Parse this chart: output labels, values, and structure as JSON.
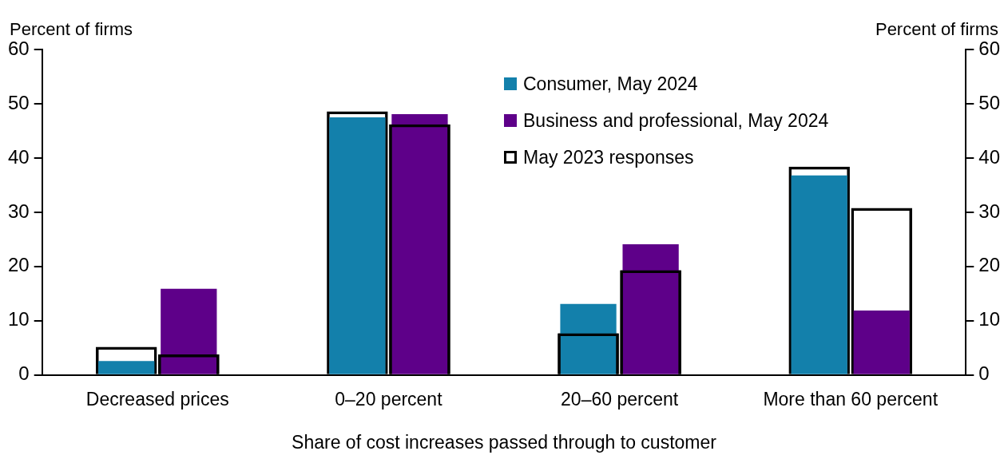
{
  "chart_data": {
    "type": "bar",
    "xlabel": "Share of cost increases passed through to customer",
    "ylabel": "Percent of firms",
    "y2label": "Percent of firms",
    "categories": [
      "Decreased prices",
      "0–20 percent",
      "20–60 percent",
      "More than 60 percent"
    ],
    "series": [
      {
        "name": "Consumer, May 2024",
        "color": "#1380ab",
        "values": [
          2.6,
          47.5,
          13.1,
          36.8
        ]
      },
      {
        "name": "Business and professional, May 2024",
        "color": "#5e0089",
        "values": [
          15.9,
          48.1,
          24.1,
          11.9
        ]
      },
      {
        "name": "May 2023 responses",
        "color": "#000000",
        "values": [
          5.2,
          48.6,
          7.7,
          38.4
        ]
      },
      {
        "color": "#000000",
        "values": [
          3.8,
          46.2,
          19.3,
          30.8
        ]
      }
    ],
    "ylim": [
      0,
      60
    ],
    "yticks": [
      0,
      10,
      20,
      30,
      40,
      50,
      60
    ],
    "y2lim": [
      0,
      60
    ],
    "y2ticks": [
      0,
      10,
      20,
      30,
      40,
      50,
      60
    ],
    "grid": false,
    "legend": "top"
  }
}
